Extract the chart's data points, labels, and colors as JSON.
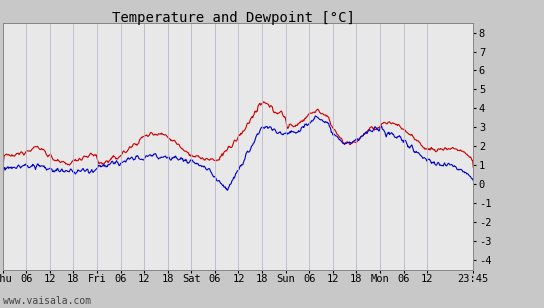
{
  "title": "Temperature and Dewpoint [°C]",
  "ylabel_right_ticks": [
    -4,
    -3,
    -2,
    -1,
    0,
    1,
    2,
    3,
    4,
    5,
    6,
    7,
    8
  ],
  "ylim": [
    -4.5,
    8.5
  ],
  "xlabel_ticks": [
    "Thu",
    "06",
    "12",
    "18",
    "Fri",
    "06",
    "12",
    "18",
    "Sat",
    "06",
    "12",
    "18",
    "Sun",
    "06",
    "12",
    "18",
    "Mon",
    "06",
    "12",
    "23:45"
  ],
  "bg_color": "#c8c8c8",
  "plot_bg_color": "#e8e8e8",
  "grid_color": "#b8b8c8",
  "temp_color": "#cc0000",
  "dewpoint_color": "#0000cc",
  "line_width": 0.8,
  "watermark": "www.vaisala.com",
  "title_fontsize": 10,
  "tick_fontsize": 7.5,
  "watermark_fontsize": 7
}
